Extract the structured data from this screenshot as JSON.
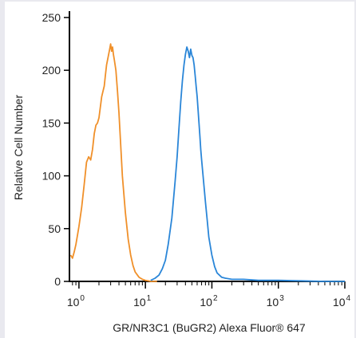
{
  "chart_data": {
    "type": "line",
    "xlabel": "GR/NR3C1 (BuGR2) Alexa Fluor® 647",
    "ylabel": "Relative Cell Number",
    "xscale": "log",
    "xlim": [
      0.7,
      10000
    ],
    "ylim": [
      0,
      256
    ],
    "grid": false,
    "x_ticks": [
      {
        "base": "10",
        "exp": "0",
        "value": 1
      },
      {
        "base": "10",
        "exp": "1",
        "value": 10
      },
      {
        "base": "10",
        "exp": "2",
        "value": 100
      },
      {
        "base": "10",
        "exp": "3",
        "value": 1000
      },
      {
        "base": "10",
        "exp": "4",
        "value": 10000
      }
    ],
    "y_ticks": [
      {
        "label": "0",
        "value": 0
      },
      {
        "label": "50",
        "value": 50
      },
      {
        "label": "100",
        "value": 100
      },
      {
        "label": "150",
        "value": 150
      },
      {
        "label": "200",
        "value": 200
      },
      {
        "label": "250",
        "value": 250
      }
    ],
    "series": [
      {
        "color": "#f0902a",
        "x": [
          0.75,
          0.8,
          0.85,
          0.9,
          1.0,
          1.1,
          1.2,
          1.3,
          1.4,
          1.5,
          1.6,
          1.7,
          1.8,
          1.9,
          2.0,
          2.1,
          2.2,
          2.3,
          2.4,
          2.5,
          2.6,
          2.7,
          2.8,
          2.9,
          3.0,
          3.1,
          3.2,
          3.3,
          3.4,
          3.5,
          3.6,
          3.8,
          4.0,
          4.2,
          4.5,
          5.0,
          5.5,
          6.0,
          6.5,
          7.0,
          8.0,
          9.0,
          10.0,
          11.0,
          12.0,
          13.0,
          15.0
        ],
        "y": [
          25,
          22,
          28,
          35,
          52,
          70,
          92,
          113,
          118,
          115,
          125,
          140,
          148,
          150,
          155,
          165,
          175,
          180,
          185,
          195,
          205,
          210,
          215,
          220,
          225,
          218,
          222,
          215,
          210,
          205,
          200,
          180,
          160,
          135,
          100,
          65,
          40,
          25,
          15,
          9,
          4,
          2,
          1,
          0.5,
          0,
          0,
          0
        ]
      },
      {
        "color": "#2a86d8",
        "x": [
          12,
          14,
          16,
          18,
          20,
          22,
          25,
          28,
          30,
          32,
          34,
          36,
          38,
          40,
          42,
          44,
          46,
          48,
          50,
          52,
          54,
          56,
          58,
          60,
          62,
          64,
          66,
          68,
          70,
          75,
          80,
          85,
          90,
          100,
          110,
          120,
          140,
          160,
          200,
          300,
          500,
          1000,
          5000,
          10000
        ],
        "y": [
          1,
          3,
          6,
          12,
          20,
          35,
          60,
          95,
          118,
          145,
          170,
          190,
          205,
          215,
          222,
          218,
          212,
          220,
          214,
          212,
          205,
          195,
          185,
          175,
          162,
          150,
          138,
          125,
          115,
          95,
          75,
          58,
          42,
          25,
          14,
          8,
          4,
          3,
          2,
          2,
          1,
          1,
          0,
          0
        ]
      }
    ]
  }
}
